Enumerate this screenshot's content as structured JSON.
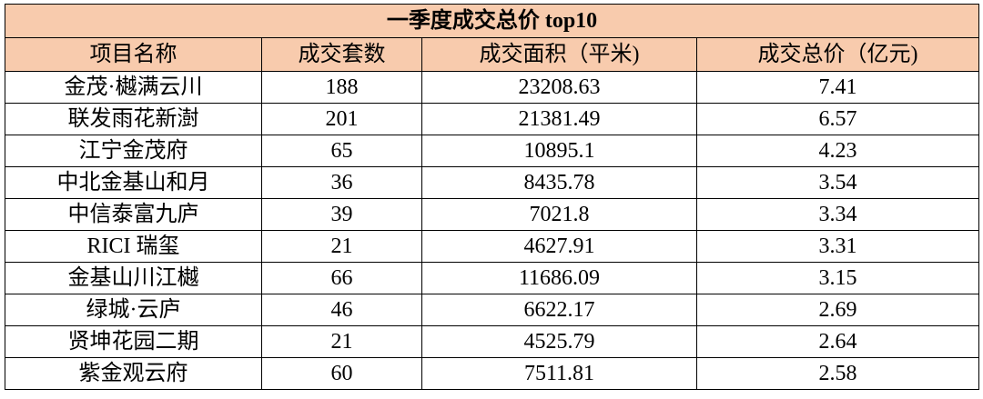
{
  "table": {
    "title": "一季度成交总价 top10",
    "header": [
      "项目名称",
      "成交套数",
      "成交面积（平米)",
      "成交总价（亿元)"
    ],
    "rows": [
      [
        "金茂·樾满云川",
        "188",
        "23208.63",
        "7.41"
      ],
      [
        "联发雨花新澍",
        "201",
        "21381.49",
        "6.57"
      ],
      [
        "江宁金茂府",
        "65",
        "10895.1",
        "4.23"
      ],
      [
        "中北金基山和月",
        "36",
        "8435.78",
        "3.54"
      ],
      [
        "中信泰富九庐",
        "39",
        "7021.8",
        "3.34"
      ],
      [
        "RICI 瑞玺",
        "21",
        "4627.91",
        "3.31"
      ],
      [
        "金基山川江樾",
        "66",
        "11686.09",
        "3.15"
      ],
      [
        "绿城·云庐",
        "46",
        "6622.17",
        "2.69"
      ],
      [
        "贤坤花园二期",
        "21",
        "4525.79",
        "2.64"
      ],
      [
        "紫金观云府",
        "60",
        "7511.81",
        "2.58"
      ]
    ]
  }
}
